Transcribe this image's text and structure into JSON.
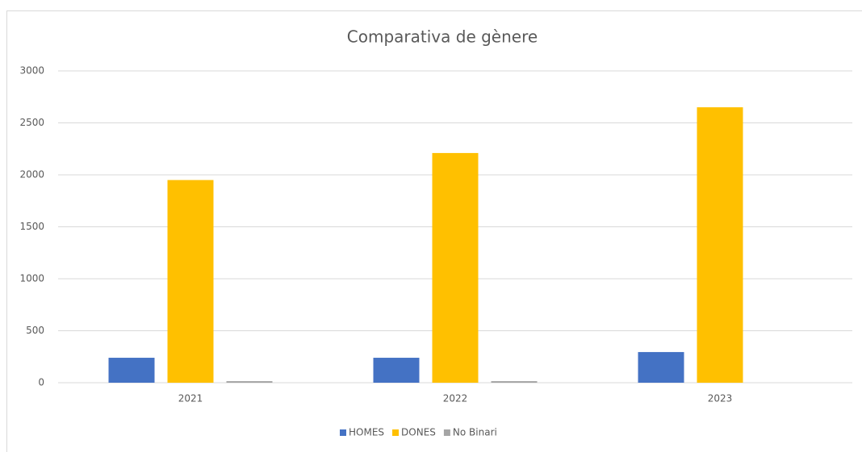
{
  "chart_data": {
    "type": "bar",
    "title": "Comparativa de gènere",
    "categories": [
      "2021",
      "2022",
      "2023"
    ],
    "series": [
      {
        "name": "HOMES",
        "color": "#4472c4",
        "values": [
          240,
          240,
          295
        ]
      },
      {
        "name": "DONES",
        "color": "#ffc000",
        "values": [
          1950,
          2210,
          2650
        ]
      },
      {
        "name": "No Binari",
        "color": "#a5a5a5",
        "values": [
          15,
          15,
          0
        ]
      }
    ],
    "ylim": [
      0,
      3000
    ],
    "yticks": [
      0,
      500,
      1000,
      1500,
      2000,
      2500,
      3000
    ],
    "grid": true,
    "legend": "bottom"
  }
}
